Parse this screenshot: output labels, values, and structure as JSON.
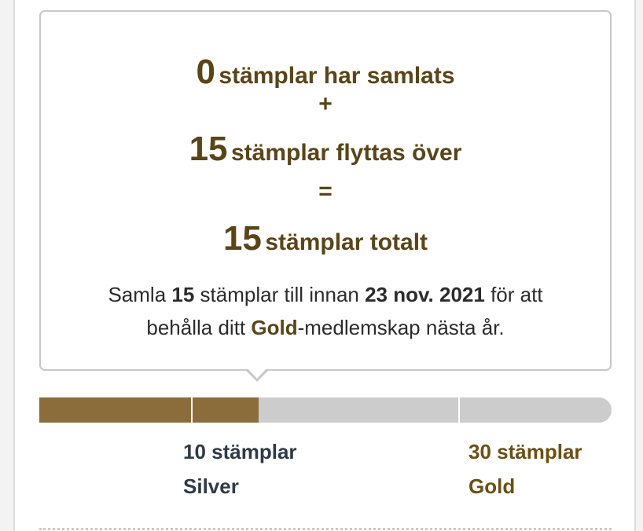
{
  "summary": {
    "collected_count": "0",
    "collected_label": "stämplar har samlats",
    "plus": "+",
    "transferred_count": "15",
    "transferred_label": "stämplar flyttas över",
    "equals": "=",
    "total_count": "15",
    "total_label": "stämplar totalt",
    "note_prefix": "Samla",
    "note_stamps": "15",
    "note_middle": "stämplar till innan",
    "note_date": "23 nov. 2021",
    "note_suffix": "för att",
    "note_line2_prefix": "behålla ditt",
    "note_level": "Gold",
    "note_line2_suffix": "-medlemskap nästa år."
  },
  "progress": {
    "current_stamps": 15,
    "max_stamps": 30,
    "segments": 4,
    "fill_color": "#8a6d3b",
    "track_color": "#cccccc"
  },
  "tiers": [
    {
      "stamps": "10 stämplar",
      "level": "Silver",
      "color": "#2f3a44"
    },
    {
      "stamps": "30 stämplar",
      "level": "Gold",
      "color": "#6b4f14"
    }
  ]
}
